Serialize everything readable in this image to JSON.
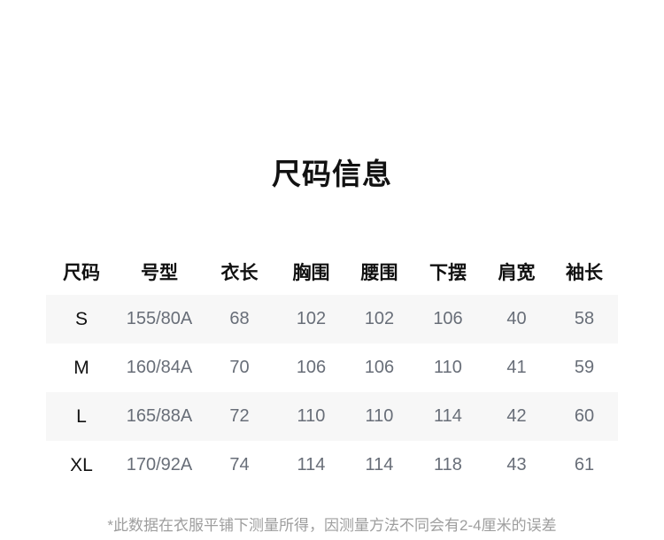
{
  "page": {
    "title": "尺码信息",
    "footnote": "*此数据在衣服平铺下测量所得，因测量方法不同会有2-4厘米的误差"
  },
  "size_table": {
    "headers": [
      "尺码",
      "号型",
      "衣长",
      "胸围",
      "腰围",
      "下摆",
      "肩宽",
      "袖长"
    ],
    "rows": [
      [
        "S",
        "155/80A",
        "68",
        "102",
        "102",
        "106",
        "40",
        "58"
      ],
      [
        "M",
        "160/84A",
        "70",
        "106",
        "106",
        "110",
        "41",
        "59"
      ],
      [
        "L",
        "165/88A",
        "72",
        "110",
        "110",
        "114",
        "42",
        "60"
      ],
      [
        "XL",
        "170/92A",
        "74",
        "114",
        "114",
        "118",
        "43",
        "61"
      ]
    ]
  },
  "colors": {
    "text_primary": "#111111",
    "text_values": "#686e78",
    "text_footnote": "#9e9e9e",
    "row_stripe": "#f7f7f7",
    "background": "#ffffff"
  }
}
